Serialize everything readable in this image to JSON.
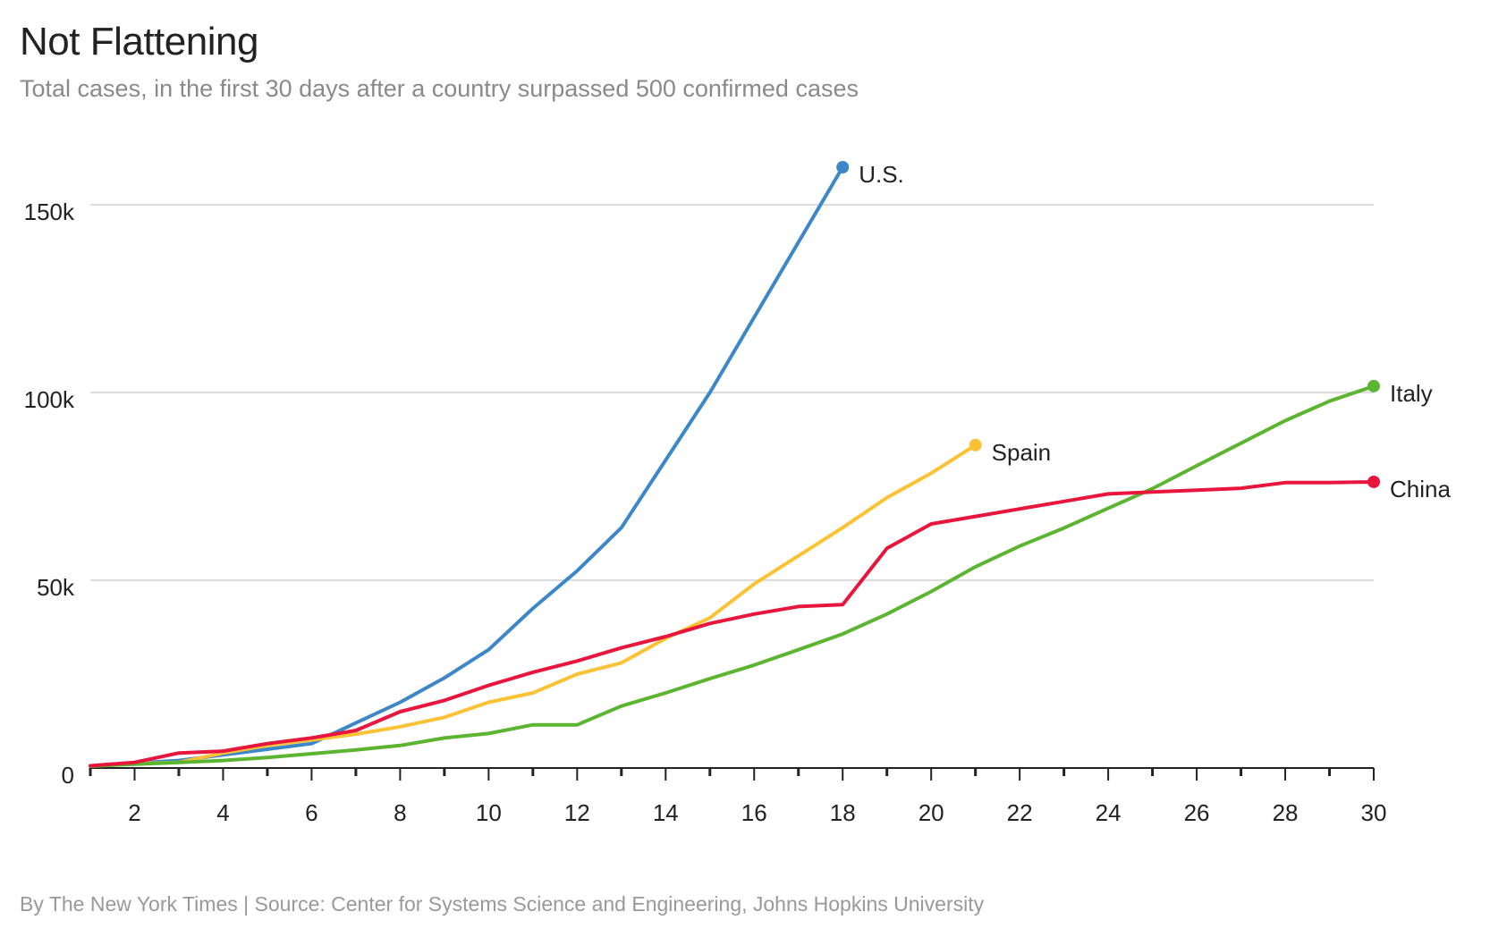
{
  "chart_data": {
    "type": "line",
    "title": "Not Flattening",
    "subtitle": "Total cases, in the first 30 days after a country surpassed 500 confirmed cases",
    "source": "By The New York Times | Source: Center for Systems Science and Engineering, Johns Hopkins University",
    "xlabel": "",
    "ylabel": "",
    "xlim": [
      1,
      30
    ],
    "ylim": [
      0,
      150000
    ],
    "x_ticks": [
      2,
      4,
      6,
      8,
      10,
      12,
      14,
      16,
      18,
      20,
      22,
      24,
      26,
      28,
      30
    ],
    "y_ticks": [
      {
        "value": 0,
        "label": "0"
      },
      {
        "value": 50000,
        "label": "50k"
      },
      {
        "value": 100000,
        "label": "100k"
      },
      {
        "value": 150000,
        "label": "150k"
      }
    ],
    "grid": "horizontal",
    "legend": "direct labels at line ends",
    "series": [
      {
        "name": "U.S.",
        "color": "#3d87c9",
        "x": [
          1,
          2,
          3,
          4,
          5,
          6,
          7,
          8,
          9,
          10,
          11,
          12,
          13,
          14,
          15,
          16,
          17,
          18
        ],
        "values": [
          500,
          1300,
          2000,
          3500,
          5000,
          6500,
          12000,
          17500,
          24000,
          31500,
          42500,
          52500,
          64000,
          82000,
          100000,
          120000,
          140000,
          160000
        ]
      },
      {
        "name": "Spain",
        "color": "#fbc235",
        "x": [
          1,
          2,
          3,
          4,
          5,
          6,
          7,
          8,
          9,
          10,
          11,
          12,
          13,
          14,
          15,
          16,
          17,
          18,
          19,
          20,
          21
        ],
        "values": [
          500,
          1200,
          1500,
          4000,
          6000,
          7500,
          9000,
          11000,
          13500,
          17500,
          20000,
          25000,
          28000,
          34500,
          40000,
          49000,
          56500,
          64000,
          72000,
          78500,
          86000
        ]
      },
      {
        "name": "Italy",
        "color": "#5cb531",
        "x": [
          1,
          2,
          3,
          4,
          5,
          6,
          7,
          8,
          9,
          10,
          11,
          12,
          13,
          14,
          15,
          16,
          17,
          18,
          19,
          20,
          21,
          22,
          23,
          24,
          25,
          26,
          27,
          28,
          29,
          30
        ],
        "values": [
          500,
          1000,
          1500,
          2000,
          2800,
          3800,
          4800,
          6000,
          8000,
          9200,
          11500,
          11500,
          16500,
          20000,
          23800,
          27400,
          31500,
          35700,
          41000,
          47000,
          53600,
          59100,
          63900,
          69200,
          74400,
          80500,
          86500,
          92500,
          97700,
          101700
        ]
      },
      {
        "name": "China",
        "color": "#e8163d",
        "x": [
          1,
          2,
          3,
          4,
          5,
          6,
          7,
          8,
          9,
          10,
          11,
          12,
          13,
          14,
          15,
          16,
          17,
          18,
          19,
          20,
          21,
          22,
          23,
          24,
          25,
          26,
          27,
          28,
          29,
          30
        ],
        "values": [
          600,
          1500,
          4000,
          4500,
          6500,
          8000,
          10000,
          15000,
          18000,
          22000,
          25500,
          28500,
          32000,
          35000,
          38500,
          41000,
          43000,
          43500,
          58500,
          65000,
          67000,
          69000,
          71000,
          73000,
          73500,
          74000,
          74500,
          76000,
          76000,
          76200
        ]
      }
    ]
  }
}
